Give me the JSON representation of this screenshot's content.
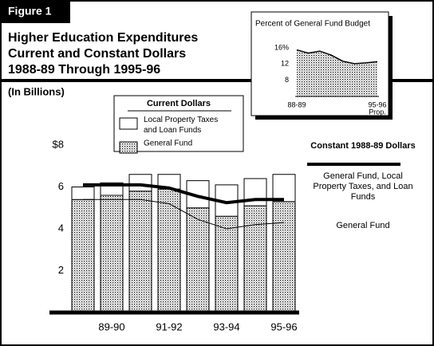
{
  "figure_label": "Figure 1",
  "chart_data": [
    {
      "type": "bar",
      "title": [
        "Higher Education Expenditures",
        "Current and Constant Dollars",
        "1988-89 Through 1995-96"
      ],
      "subtitle": "(In Billions)",
      "categories": [
        null,
        "89-90",
        null,
        "91-92",
        null,
        "93-94",
        null,
        "95-96"
      ],
      "ylim": [
        0,
        8
      ],
      "yticks": [
        2,
        4,
        6,
        {
          "value": 8,
          "label": "$8"
        }
      ],
      "grid": false,
      "legend_groups": [
        "Current Dollars",
        "Constant 1988-89 Dollars"
      ],
      "series": [
        {
          "name": "Local Property Taxes and Loan Funds",
          "type": "bar",
          "group": 0,
          "color": "#ffffff",
          "stacked": true,
          "values": [
            0.6,
            0.6,
            0.8,
            0.7,
            1.3,
            1.5,
            1.3,
            1.3
          ]
        },
        {
          "name": "General Fund",
          "type": "bar",
          "group": 0,
          "color": "#000000",
          "pattern": "dots",
          "stacked": true,
          "values": [
            5.4,
            5.6,
            5.8,
            5.9,
            5.0,
            4.6,
            5.1,
            5.3
          ]
        },
        {
          "name": "General Fund, Local Property Taxes, and Loan Funds",
          "type": "line",
          "group": 1,
          "color": "#000000",
          "line_width": 4,
          "values": [
            6.1,
            6.1,
            6.1,
            5.95,
            5.55,
            5.25,
            5.4,
            5.4
          ]
        },
        {
          "name": "General Fund",
          "type": "line",
          "group": 1,
          "color": "#000000",
          "line_width": 1,
          "values": [
            5.4,
            5.4,
            5.4,
            5.2,
            4.45,
            4.0,
            4.2,
            4.3
          ]
        }
      ]
    },
    {
      "type": "area",
      "title": "Percent of General Fund Budget",
      "categories": [
        "88-89",
        null,
        null,
        null,
        null,
        null,
        null,
        "95-96"
      ],
      "last_label_note": "Prop.",
      "ylim": [
        4,
        16.5
      ],
      "yticks": [
        8,
        12,
        {
          "value": 16,
          "label": "16%"
        }
      ],
      "color": "#000000",
      "pattern": "dots",
      "values": [
        15.5,
        14.7,
        15.2,
        14.2,
        12.7,
        12.1,
        12.3,
        12.6
      ]
    }
  ]
}
